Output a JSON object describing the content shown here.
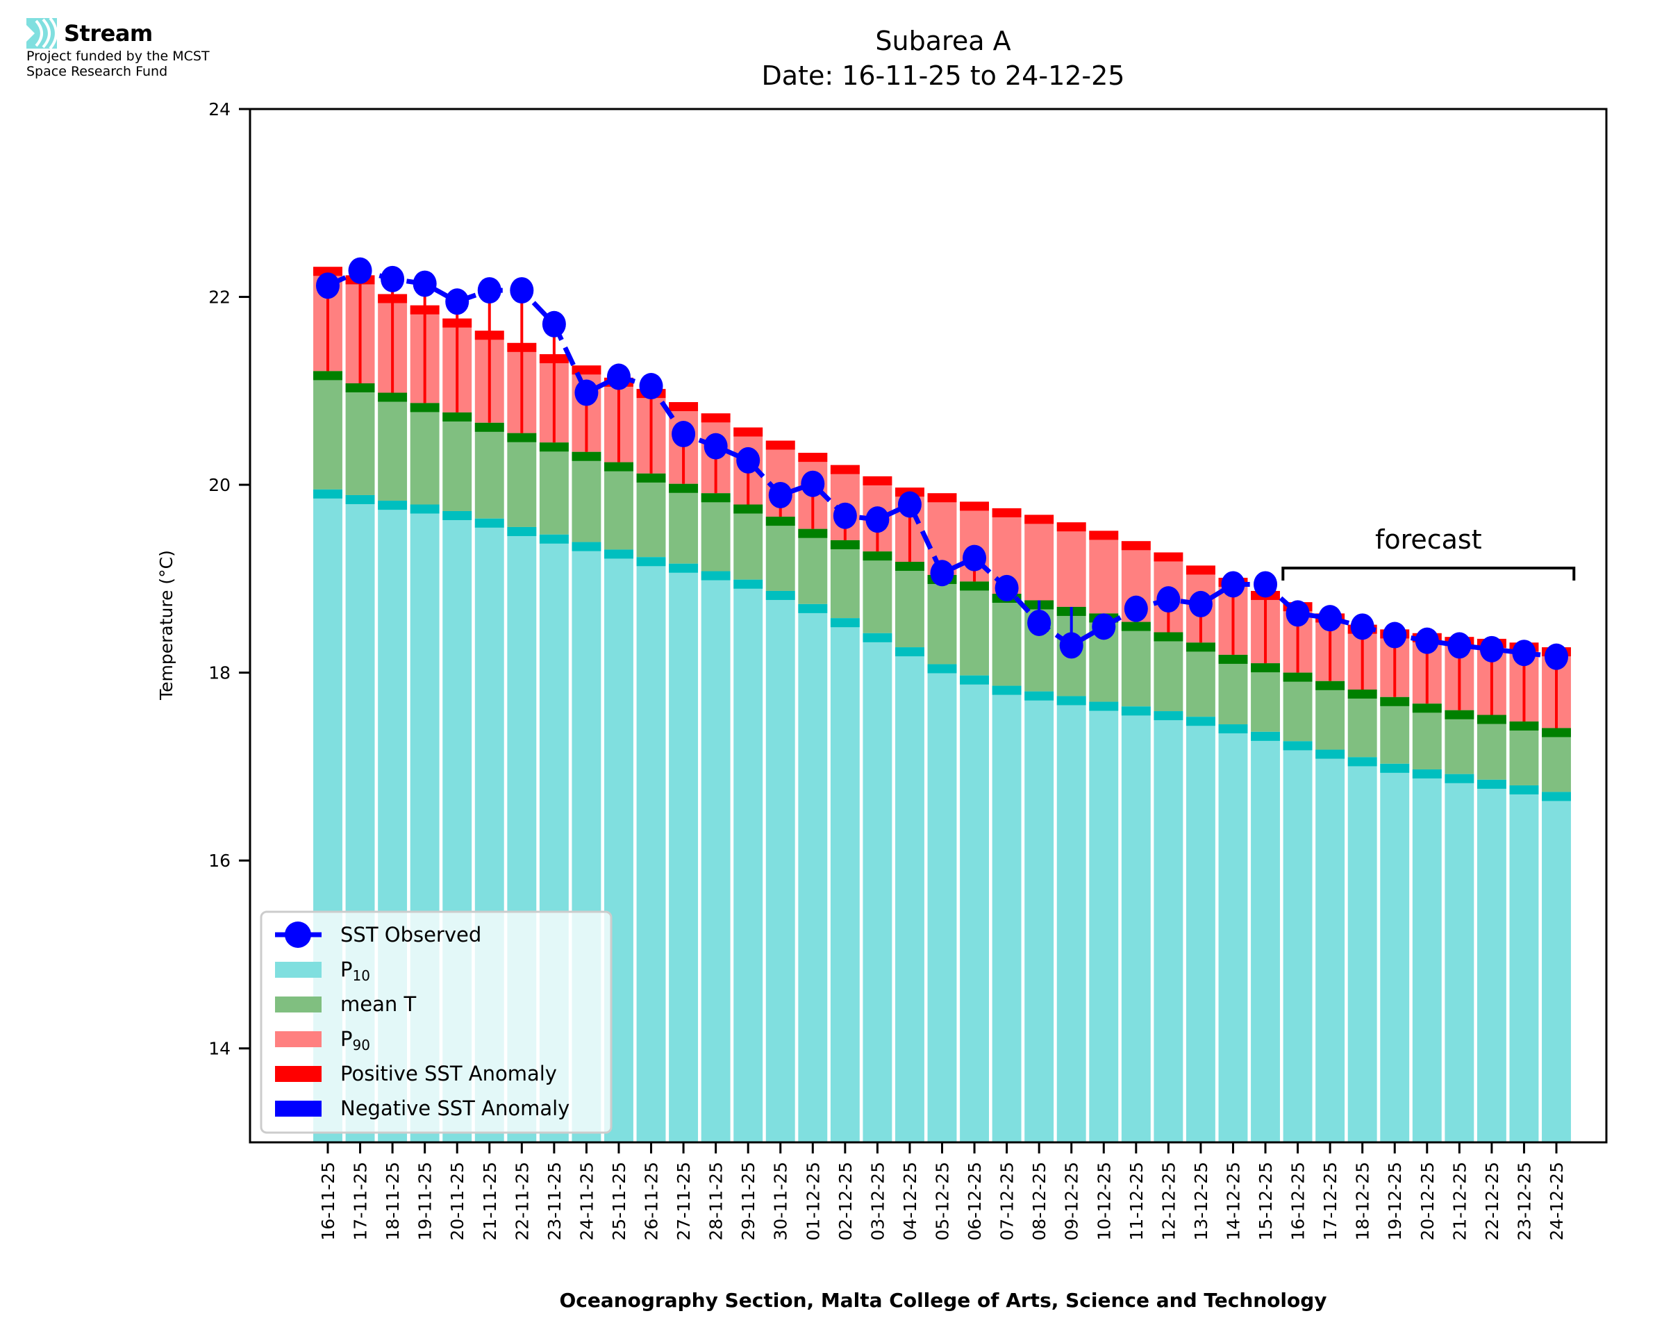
{
  "header": {
    "logo_name": "Stream",
    "funding_line1": "Project funded by the MCST",
    "funding_line2": "Space Research Fund"
  },
  "chart_data": {
    "type": "bar",
    "title": "Subarea A",
    "subtitle": "Date: 16-11-25 to 24-12-25",
    "xlabel": "Oceanography Section, Malta College of Arts, Science and Technology",
    "ylabel": "Temperature (°C)",
    "ylim": [
      13,
      24
    ],
    "yticks": [
      14,
      16,
      18,
      20,
      22,
      24
    ],
    "grid": false,
    "legend_position": "bottom-left",
    "annotation": {
      "text": "forecast",
      "start": "16-12-25",
      "end": "24-12-25"
    },
    "colors": {
      "p10": "#80dfdf",
      "p10_edge": "#00bfbf",
      "mean": "#80bf80",
      "mean_edge": "#008000",
      "p90": "#ff8080",
      "p90_edge": "#ff0000",
      "observed": "#0000ff",
      "positive_anomaly": "#ff0000",
      "negative_anomaly": "#0000ff"
    },
    "legend": [
      {
        "label": "SST Observed",
        "key": "observed"
      },
      {
        "label": "P",
        "sub": "10",
        "key": "p10"
      },
      {
        "label": "mean T",
        "key": "mean"
      },
      {
        "label": "P",
        "sub": "90",
        "key": "p90"
      },
      {
        "label": "Positive SST Anomaly",
        "key": "positive_anomaly"
      },
      {
        "label": "Negative SST Anomaly",
        "key": "negative_anomaly"
      }
    ],
    "categories": [
      "16-11-25",
      "17-11-25",
      "18-11-25",
      "19-11-25",
      "20-11-25",
      "21-11-25",
      "22-11-25",
      "23-11-25",
      "24-11-25",
      "25-11-25",
      "26-11-25",
      "27-11-25",
      "28-11-25",
      "29-11-25",
      "30-11-25",
      "01-12-25",
      "02-12-25",
      "03-12-25",
      "04-12-25",
      "05-12-25",
      "06-12-25",
      "07-12-25",
      "08-12-25",
      "09-12-25",
      "10-12-25",
      "11-12-25",
      "12-12-25",
      "13-12-25",
      "14-12-25",
      "15-12-25",
      "16-12-25",
      "17-12-25",
      "18-12-25",
      "19-12-25",
      "20-12-25",
      "21-12-25",
      "22-12-25",
      "23-12-25",
      "24-12-25"
    ],
    "series": [
      {
        "name": "P10",
        "values": [
          19.95,
          19.89,
          19.83,
          19.79,
          19.72,
          19.64,
          19.55,
          19.47,
          19.39,
          19.31,
          19.23,
          19.16,
          19.08,
          18.99,
          18.87,
          18.73,
          18.58,
          18.42,
          18.27,
          18.09,
          17.97,
          17.86,
          17.8,
          17.75,
          17.69,
          17.64,
          17.59,
          17.53,
          17.45,
          17.37,
          17.27,
          17.18,
          17.1,
          17.03,
          16.97,
          16.92,
          16.86,
          16.8,
          16.73
        ]
      },
      {
        "name": "mean T",
        "values": [
          21.21,
          21.08,
          20.98,
          20.87,
          20.77,
          20.66,
          20.55,
          20.45,
          20.35,
          20.24,
          20.12,
          20.01,
          19.91,
          19.79,
          19.66,
          19.53,
          19.41,
          19.29,
          19.18,
          19.04,
          18.97,
          18.84,
          18.77,
          18.7,
          18.63,
          18.54,
          18.43,
          18.32,
          18.19,
          18.1,
          18.0,
          17.91,
          17.82,
          17.74,
          17.67,
          17.6,
          17.55,
          17.48,
          17.41
        ]
      },
      {
        "name": "P90",
        "values": [
          22.32,
          22.23,
          22.03,
          21.91,
          21.77,
          21.64,
          21.51,
          21.39,
          21.27,
          21.14,
          21.02,
          20.88,
          20.76,
          20.61,
          20.47,
          20.34,
          20.21,
          20.09,
          19.97,
          19.91,
          19.82,
          19.75,
          19.68,
          19.6,
          19.51,
          19.4,
          19.28,
          19.14,
          19.01,
          18.87,
          18.75,
          18.63,
          18.51,
          18.46,
          18.42,
          18.38,
          18.36,
          18.32,
          18.27
        ]
      },
      {
        "name": "SST Observed",
        "values": [
          22.12,
          22.28,
          22.19,
          22.14,
          21.95,
          22.07,
          22.07,
          21.71,
          20.98,
          21.15,
          21.05,
          20.54,
          20.41,
          20.26,
          19.89,
          20.01,
          19.67,
          19.63,
          19.79,
          19.06,
          19.22,
          18.9,
          18.53,
          18.29,
          18.49,
          18.68,
          18.78,
          18.73,
          18.94,
          18.94,
          18.63,
          18.58,
          18.49,
          18.4,
          18.34,
          18.29,
          18.25,
          18.21,
          18.17
        ]
      }
    ]
  }
}
